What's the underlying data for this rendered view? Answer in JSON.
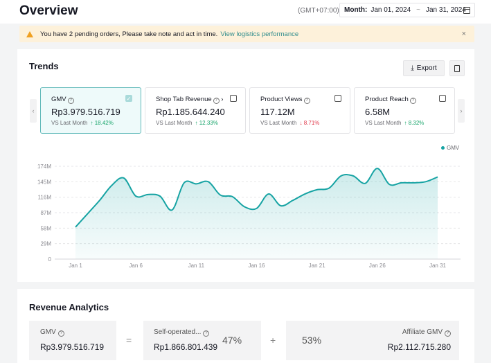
{
  "header": {
    "title": "Overview",
    "timezone": "(GMT+07:00)",
    "date_label": "Month:",
    "date_start": "Jan 01, 2024",
    "date_separator": "~",
    "date_end": "Jan 31, 2024"
  },
  "alert": {
    "message": "You have 2 pending orders, Please take note and act in time.",
    "link": "View logistics performance",
    "close": "×"
  },
  "trends": {
    "title": "Trends",
    "export_label": "Export",
    "prev": "‹",
    "next": "›",
    "metrics": [
      {
        "name": "GMV",
        "value": "Rp3.979.516.719",
        "vs_label": "VS Last Month",
        "change": "18.42%",
        "direction": "up",
        "arrow": "↑",
        "selected": true,
        "check": "✓"
      },
      {
        "name": "Shop Tab Revenue",
        "suffix": "›",
        "value": "Rp1.185.644.240",
        "vs_label": "VS Last Month",
        "change": "12.33%",
        "direction": "up",
        "arrow": "↑",
        "selected": false
      },
      {
        "name": "Product Views",
        "value": "117.12M",
        "vs_label": "VS Last Month",
        "change": "8.71%",
        "direction": "down",
        "arrow": "↓",
        "selected": false
      },
      {
        "name": "Product Reach",
        "value": "6.58M",
        "vs_label": "VS Last Month",
        "change": "8.32%",
        "direction": "up",
        "arrow": "↑",
        "selected": false
      }
    ],
    "legend": "GMV"
  },
  "chart_data": {
    "type": "area",
    "series": [
      {
        "name": "GMV",
        "values": [
          60,
          85,
          110,
          138,
          152,
          118,
          121,
          118,
          92,
          143,
          141,
          145,
          120,
          117,
          98,
          95,
          122,
          100,
          110,
          122,
          130,
          133,
          156,
          156,
          142,
          170,
          140,
          143,
          143,
          145,
          154
        ]
      }
    ],
    "x": [
      1,
      2,
      3,
      4,
      5,
      6,
      7,
      8,
      9,
      10,
      11,
      12,
      13,
      14,
      15,
      16,
      17,
      18,
      19,
      20,
      21,
      22,
      23,
      24,
      25,
      26,
      27,
      28,
      29,
      30,
      31
    ],
    "x_tick_labels": [
      "Jan 1",
      "Jan 6",
      "Jan 11",
      "Jan 16",
      "Jan 21",
      "Jan 26",
      "Jan 31"
    ],
    "y_tick_labels": [
      "0",
      "29M",
      "58M",
      "87M",
      "116M",
      "145M",
      "174M"
    ],
    "ylim": [
      0,
      174
    ],
    "y_unit": "M",
    "grid": true,
    "legend_position": "top-right",
    "color": "#16a3a3"
  },
  "revenue": {
    "title": "Revenue Analytics",
    "gmv_label": "GMV",
    "gmv_value": "Rp3.979.516.719",
    "equals": "=",
    "self_label": "Self-operated...",
    "self_value": "Rp1.866.801.439",
    "self_pct": "47%",
    "plus": "+",
    "affiliate_pct": "53%",
    "affiliate_label": "Affiliate GMV",
    "affiliate_value": "Rp2.112.715.280",
    "help": "?"
  },
  "colors": {
    "accent": "#16a3a3",
    "up": "#1aa56c",
    "down": "#e0384a",
    "alert_bg": "#fdf1da"
  }
}
